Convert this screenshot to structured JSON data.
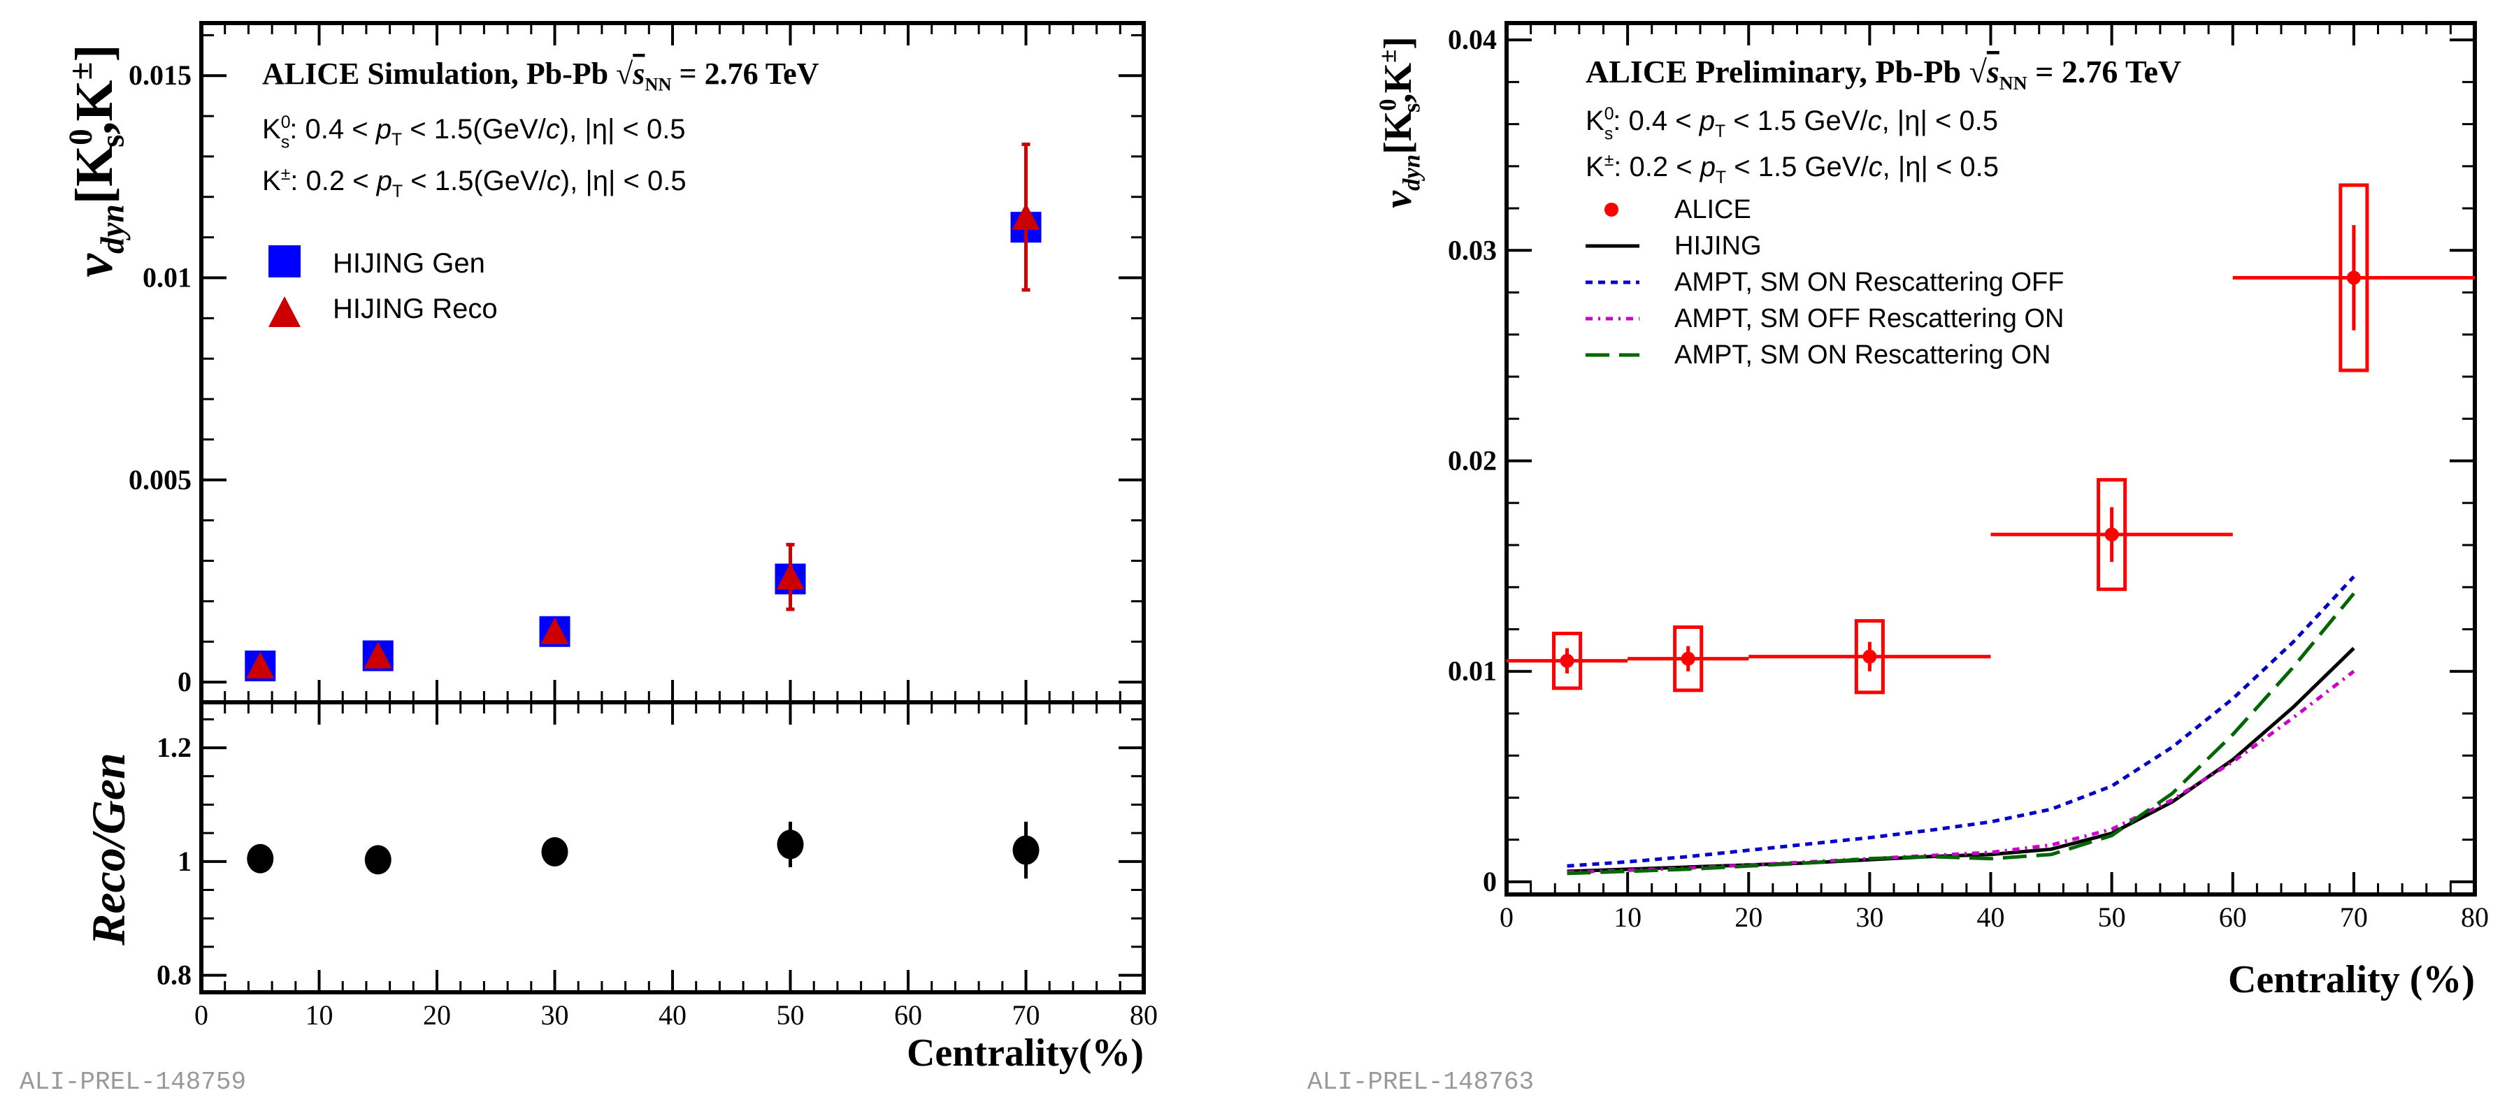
{
  "chart_data": [
    {
      "type": "scatter",
      "id": "left_top",
      "label": "ALI-PREL-148759",
      "xlim": [
        0,
        80
      ],
      "ylim": [
        -0.0005,
        0.0163
      ],
      "x_ticks": [
        "0",
        "10",
        "20",
        "30",
        "40",
        "50",
        "60",
        "70",
        "80"
      ],
      "y_ticks": [
        "0",
        "0.005",
        "0.01",
        "0.015"
      ],
      "y_tick_values": [
        0,
        0.005,
        0.01,
        0.015
      ],
      "ylabel_parts": {
        "v": "v",
        "sub": "dyn",
        "bracket": "[K",
        "s0": "0",
        "s": "s",
        "k": ",K",
        "pm": "±",
        "close": "]"
      },
      "title": "ALICE Simulation, Pb-Pb",
      "energy": {
        "s": "s",
        "sub": "NN",
        "value": "= 2.76 TeV"
      },
      "cut_lines": [
        {
          "particle": "K",
          "sup": "0",
          "sub": "s",
          "text1": ": 0.4 < ",
          "pt": "p",
          "ptsub": "T",
          "text2": " < 1.5(GeV/",
          "c": "c",
          "text3": "), |η| < 0.5"
        },
        {
          "particle": "K",
          "sup": "±",
          "sub": "",
          "text1": ": 0.2 < ",
          "pt": "p",
          "ptsub": "T",
          "text2": " < 1.5(GeV/",
          "c": "c",
          "text3": "), |η| < 0.5"
        }
      ],
      "legend": [
        {
          "name": "HIJING Gen",
          "color": "#0000ff",
          "marker": "square"
        },
        {
          "name": "HIJING Reco",
          "color": "#cc0000",
          "marker": "triangle"
        }
      ],
      "series": [
        {
          "name": "HIJING Gen",
          "x": [
            5,
            15,
            30,
            50,
            70
          ],
          "y": [
            0.0004,
            0.00065,
            0.00125,
            0.00255,
            0.01125
          ],
          "yerr": [
            0.0001,
            0.0001,
            0.0001,
            0.0004,
            0.0013
          ]
        },
        {
          "name": "HIJING Reco",
          "x": [
            5,
            15,
            30,
            50,
            70
          ],
          "y": [
            0.0004,
            0.00065,
            0.00125,
            0.0026,
            0.0115
          ],
          "yerr": [
            0.0001,
            0.0001,
            0.0001,
            0.0008,
            0.0018
          ]
        }
      ]
    },
    {
      "type": "scatter",
      "id": "left_bottom",
      "xlim": [
        0,
        80
      ],
      "ylim": [
        0.77,
        1.28
      ],
      "x_ticks": [
        "0",
        "10",
        "20",
        "30",
        "40",
        "50",
        "60",
        "70",
        "80"
      ],
      "y_ticks": [
        "0.8",
        "1",
        "1.2"
      ],
      "y_tick_values": [
        0.8,
        1.0,
        1.2
      ],
      "xlabel": "Centrality(%)",
      "ylabel": "Reco/Gen",
      "series": [
        {
          "name": "Reco/Gen",
          "x": [
            5,
            15,
            30,
            50,
            70
          ],
          "y": [
            1.005,
            1.003,
            1.017,
            1.03,
            1.02
          ],
          "yerr": [
            0.02,
            0.02,
            0.025,
            0.04,
            0.05
          ]
        }
      ]
    },
    {
      "type": "line",
      "id": "right",
      "label": "ALI-PREL-148763",
      "xlim": [
        0,
        80
      ],
      "ylim": [
        -0.0006,
        0.0408
      ],
      "x_ticks": [
        "0",
        "10",
        "20",
        "30",
        "40",
        "50",
        "60",
        "70",
        "80"
      ],
      "y_ticks": [
        "0",
        "0.01",
        "0.02",
        "0.03",
        "0.04"
      ],
      "y_tick_values": [
        0,
        0.01,
        0.02,
        0.03,
        0.04
      ],
      "xlabel": "Centrality (%)",
      "ylabel_parts": {
        "v": "v",
        "sub": "dyn",
        "bracket": "[K",
        "s0": "0",
        "s": "s",
        "k": ",K",
        "pm": "±",
        "close": "]"
      },
      "title": "ALICE Preliminary, Pb-Pb",
      "energy": {
        "s": "s",
        "sub": "NN",
        "value": "= 2.76 TeV"
      },
      "cut_lines": [
        {
          "particle": "K",
          "sup": "0",
          "sub": "s",
          "text1": ": 0.4 < ",
          "pt": "p",
          "ptsub": "T",
          "text2": " < 1.5 GeV/",
          "c": "c",
          "text3": ", |η| < 0.5"
        },
        {
          "particle": "K",
          "sup": "±",
          "sub": "",
          "text1": ": 0.2 < ",
          "pt": "p",
          "ptsub": "T",
          "text2": " < 1.5 GeV/",
          "c": "c",
          "text3": ", |η| < 0.5"
        }
      ],
      "legend": [
        {
          "name": "ALICE",
          "color": "#ff0000",
          "style": "marker"
        },
        {
          "name": "HIJING",
          "color": "#000000",
          "style": "solid"
        },
        {
          "name": "AMPT, SM ON Rescattering OFF",
          "color": "#0000cc",
          "style": "dotted"
        },
        {
          "name": "AMPT, SM OFF Rescattering ON",
          "color": "#cc00cc",
          "style": "dashdot"
        },
        {
          "name": "AMPT, SM ON Rescattering ON",
          "color": "#006600",
          "style": "dashed"
        }
      ],
      "alice_points": [
        {
          "x": 5,
          "y": 0.0105,
          "xlo": 0,
          "xhi": 10,
          "stat": 0.0006,
          "sys": 0.0013,
          "boxw": 2
        },
        {
          "x": 15,
          "y": 0.0106,
          "xlo": 10,
          "xhi": 20,
          "stat": 0.0006,
          "sys": 0.0015,
          "boxw": 2
        },
        {
          "x": 30,
          "y": 0.0107,
          "xlo": 20,
          "xhi": 40,
          "stat": 0.0007,
          "sys": 0.0017,
          "boxw": 2
        },
        {
          "x": 50,
          "y": 0.0165,
          "xlo": 40,
          "xhi": 60,
          "stat": 0.0013,
          "sys": 0.0026,
          "boxw": 2
        },
        {
          "x": 70,
          "y": 0.0287,
          "xlo": 60,
          "xhi": 80,
          "stat": 0.0025,
          "sys": 0.0044,
          "boxw": 2
        }
      ],
      "series": [
        {
          "name": "HIJING",
          "x": [
            5,
            10,
            15,
            20,
            25,
            30,
            35,
            40,
            45,
            50,
            55,
            60,
            65,
            70
          ],
          "y": [
            0.0005,
            0.0006,
            0.0007,
            0.0008,
            0.0009,
            0.00105,
            0.0012,
            0.0013,
            0.00155,
            0.0023,
            0.0038,
            0.0058,
            0.0083,
            0.0111
          ]
        },
        {
          "name": "AMPT, SM ON Rescattering OFF",
          "x": [
            5,
            10,
            15,
            20,
            25,
            30,
            35,
            40,
            45,
            50,
            55,
            60,
            65,
            70
          ],
          "y": [
            0.00075,
            0.00095,
            0.0012,
            0.0015,
            0.0018,
            0.0021,
            0.00245,
            0.00285,
            0.00345,
            0.00455,
            0.0064,
            0.0087,
            0.0114,
            0.0145
          ]
        },
        {
          "name": "AMPT, SM OFF Rescattering ON",
          "x": [
            5,
            10,
            15,
            20,
            25,
            30,
            35,
            40,
            45,
            50,
            55,
            60,
            65,
            70
          ],
          "y": [
            0.00045,
            0.00055,
            0.00065,
            0.0008,
            0.00095,
            0.0011,
            0.00125,
            0.0014,
            0.00175,
            0.0025,
            0.0039,
            0.0057,
            0.0078,
            0.01
          ]
        },
        {
          "name": "AMPT, SM ON Rescattering ON",
          "x": [
            5,
            10,
            15,
            20,
            25,
            30,
            35,
            40,
            45,
            50,
            55,
            60,
            65,
            70
          ],
          "y": [
            0.0004,
            0.0005,
            0.0006,
            0.00075,
            0.0009,
            0.0011,
            0.0012,
            0.0011,
            0.0013,
            0.0022,
            0.0042,
            0.007,
            0.0102,
            0.0137
          ]
        }
      ]
    }
  ]
}
